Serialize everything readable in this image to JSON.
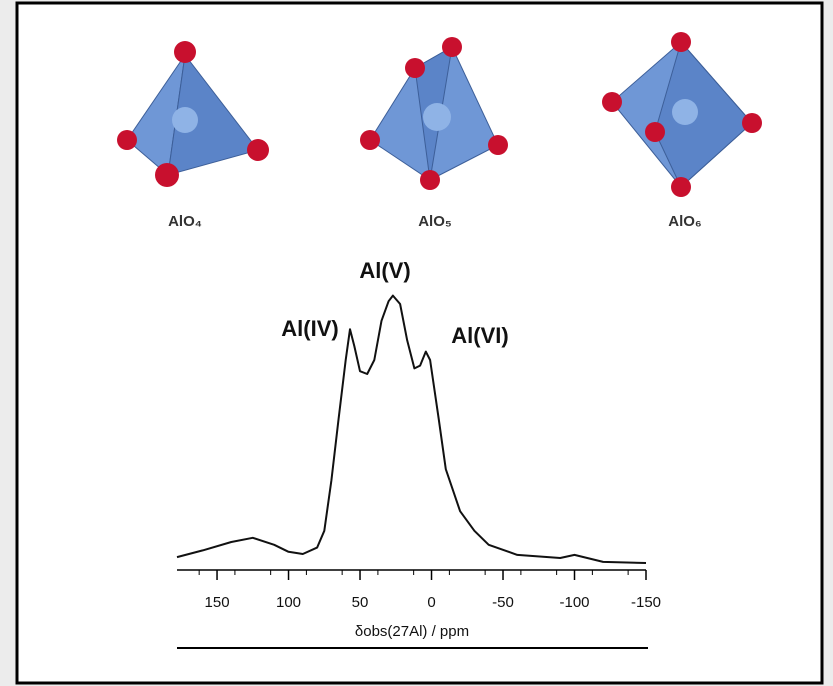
{
  "structures": [
    "AlO₄",
    "AlO₅",
    "AlO₆"
  ],
  "chart_data": {
    "type": "line",
    "x_label": "δobs(27Al) / ppm",
    "annotations": [
      "Al(IV)",
      "Al(V)",
      "Al(VI)"
    ],
    "x": [
      178,
      160,
      140,
      125,
      110,
      100,
      90,
      80,
      75,
      70,
      65,
      60,
      57,
      54,
      50,
      45,
      40,
      35,
      30,
      27,
      22,
      17,
      12,
      8,
      4,
      1,
      -5,
      -10,
      -20,
      -30,
      -40,
      -60,
      -90,
      -100,
      -120,
      -150
    ],
    "series": [
      {
        "color": "#111111",
        "values": [
          4.6,
          7,
          10,
          11.5,
          9,
          6.5,
          5.7,
          8,
          14,
          32,
          54,
          75,
          86,
          80,
          71,
          70,
          75,
          89,
          96,
          98,
          95,
          82,
          72,
          73,
          78,
          75,
          54,
          36,
          21,
          14,
          9,
          5.4,
          4.3,
          5.4,
          2.9,
          2.5
        ]
      }
    ],
    "xlim": [
      178,
      -150
    ],
    "ylim": [
      0,
      100
    ],
    "xticks": [
      150,
      100,
      50,
      0,
      -50,
      -100,
      -150
    ]
  }
}
